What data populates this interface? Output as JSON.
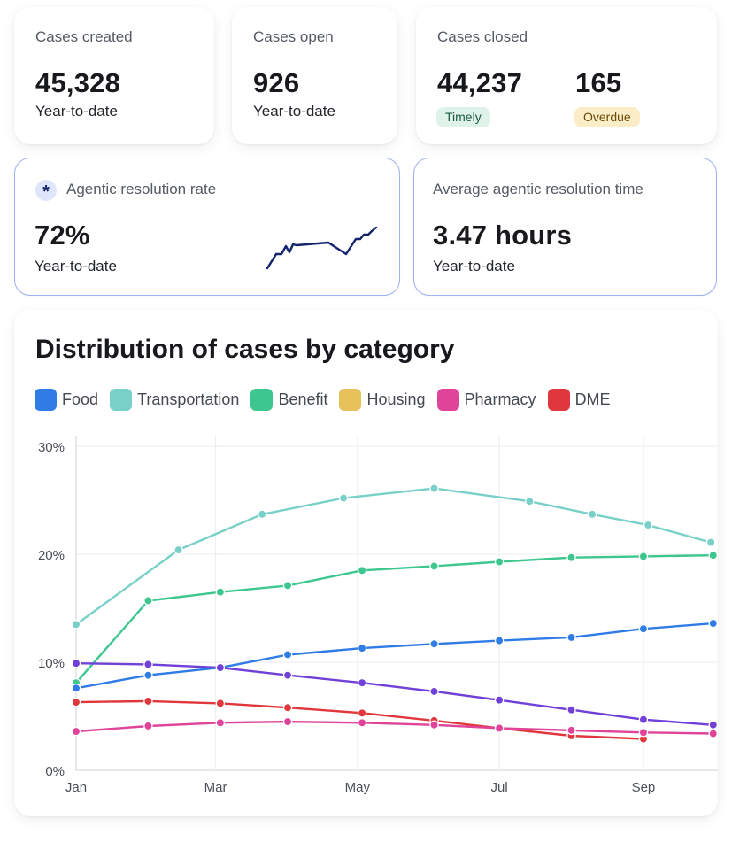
{
  "cards": {
    "created": {
      "title": "Cases created",
      "value": "45,328",
      "sub": "Year-to-date"
    },
    "open": {
      "title": "Cases open",
      "value": "926",
      "sub": "Year-to-date"
    },
    "closed": {
      "title": "Cases closed",
      "timely_value": "44,237",
      "timely_label": "Timely",
      "overdue_value": "165",
      "overdue_label": "Overdue"
    },
    "agentic_rate": {
      "title": "Agentic resolution rate",
      "value": "72%",
      "sub": "Year-to-date",
      "icon": "asterisk-icon"
    },
    "agentic_time": {
      "title": "Average agentic resolution time",
      "value": "3.47 hours",
      "sub": "Year-to-date"
    }
  },
  "colors": {
    "Food": "#2f7ce6",
    "Transportation": "#78d0c8",
    "Benefit": "#3dc78e",
    "Housing": "#e6c058",
    "Pharmacy": "#e0439a",
    "DME": "#e0373c",
    "Unlabeled": "#7040d8",
    "timely_bg": "#dff2ea",
    "timely_fg": "#1d5a41",
    "overdue_bg": "#fbedc8",
    "overdue_fg": "#6b4a08",
    "sparkline": "#14246b"
  },
  "chart_data": {
    "type": "line",
    "title": "Distribution of cases by category",
    "xlabel": "",
    "ylabel": "",
    "x_ticks": [
      "Jan",
      "Mar",
      "May",
      "Jul",
      "Sep"
    ],
    "y_ticks": [
      "0%",
      "10%",
      "20%",
      "30%"
    ],
    "ylim": [
      0,
      30
    ],
    "grid": true,
    "legend": [
      "Food",
      "Transportation",
      "Benefit",
      "Housing",
      "Pharmacy",
      "DME"
    ],
    "series": [
      {
        "name": "Transportation",
        "x": [
          "2024-01-01",
          "2024-02-14",
          "2024-03-21",
          "2024-04-25",
          "2024-06-03",
          "2024-07-14",
          "2024-08-10",
          "2024-09-03",
          "2024-09-30"
        ],
        "values": [
          13.5,
          20.4,
          23.7,
          25.2,
          26.1,
          24.9,
          23.7,
          22.7,
          21.1
        ]
      },
      {
        "name": "Benefit",
        "x": [
          "2024-01-01",
          "2024-02-01",
          "2024-03-03",
          "2024-04-01",
          "2024-05-03",
          "2024-06-03",
          "2024-07-01",
          "2024-08-01",
          "2024-09-01",
          "2024-10-01"
        ],
        "values": [
          8.1,
          15.7,
          16.5,
          17.1,
          18.5,
          18.9,
          19.3,
          19.7,
          19.8,
          19.9
        ]
      },
      {
        "name": "Food",
        "x": [
          "2024-01-01",
          "2024-02-01",
          "2024-03-03",
          "2024-04-01",
          "2024-05-03",
          "2024-06-03",
          "2024-07-01",
          "2024-08-01",
          "2024-09-01",
          "2024-10-01"
        ],
        "values": [
          7.6,
          8.8,
          9.5,
          10.7,
          11.3,
          11.7,
          12.0,
          12.3,
          13.1,
          13.6
        ]
      },
      {
        "name": "",
        "x": [
          "2024-01-01",
          "2024-02-01",
          "2024-03-03",
          "2024-04-01",
          "2024-05-03",
          "2024-06-03",
          "2024-07-01",
          "2024-08-01",
          "2024-09-01",
          "2024-10-01"
        ],
        "values": [
          9.9,
          9.8,
          9.5,
          8.8,
          8.1,
          7.3,
          6.5,
          5.6,
          4.7,
          4.2
        ]
      },
      {
        "name": "DME",
        "x": [
          "2024-01-01",
          "2024-02-01",
          "2024-03-03",
          "2024-04-01",
          "2024-05-03",
          "2024-06-03",
          "2024-07-01",
          "2024-08-01",
          "2024-09-01"
        ],
        "values": [
          6.3,
          6.4,
          6.2,
          5.8,
          5.3,
          4.6,
          3.9,
          3.2,
          2.9
        ]
      },
      {
        "name": "Pharmacy",
        "x": [
          "2024-01-01",
          "2024-02-01",
          "2024-03-03",
          "2024-04-01",
          "2024-05-03",
          "2024-06-03",
          "2024-07-01",
          "2024-08-01",
          "2024-09-01",
          "2024-10-01"
        ],
        "values": [
          3.6,
          4.1,
          4.4,
          4.5,
          4.4,
          4.2,
          3.9,
          3.7,
          3.5,
          3.4
        ]
      }
    ]
  }
}
